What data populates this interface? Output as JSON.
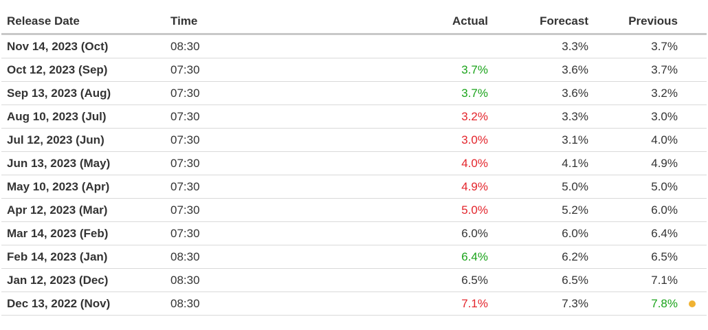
{
  "colors": {
    "better": "#1aa31a",
    "worse": "#e3242b",
    "neutral": "#333333",
    "revision_dot": "#f0b233"
  },
  "headers": {
    "release_date": "Release Date",
    "time": "Time",
    "actual": "Actual",
    "forecast": "Forecast",
    "previous": "Previous"
  },
  "rows": [
    {
      "date": "Nov 14, 2023 (Oct)",
      "time": "08:30",
      "actual": "",
      "actual_status": "neutral",
      "forecast": "3.3%",
      "previous": "3.7%",
      "previous_status": "neutral"
    },
    {
      "date": "Oct 12, 2023 (Sep)",
      "time": "07:30",
      "actual": "3.7%",
      "actual_status": "better",
      "forecast": "3.6%",
      "previous": "3.7%",
      "previous_status": "neutral"
    },
    {
      "date": "Sep 13, 2023 (Aug)",
      "time": "07:30",
      "actual": "3.7%",
      "actual_status": "better",
      "forecast": "3.6%",
      "previous": "3.2%",
      "previous_status": "neutral"
    },
    {
      "date": "Aug 10, 2023 (Jul)",
      "time": "07:30",
      "actual": "3.2%",
      "actual_status": "worse",
      "forecast": "3.3%",
      "previous": "3.0%",
      "previous_status": "neutral"
    },
    {
      "date": "Jul 12, 2023 (Jun)",
      "time": "07:30",
      "actual": "3.0%",
      "actual_status": "worse",
      "forecast": "3.1%",
      "previous": "4.0%",
      "previous_status": "neutral"
    },
    {
      "date": "Jun 13, 2023 (May)",
      "time": "07:30",
      "actual": "4.0%",
      "actual_status": "worse",
      "forecast": "4.1%",
      "previous": "4.9%",
      "previous_status": "neutral"
    },
    {
      "date": "May 10, 2023 (Apr)",
      "time": "07:30",
      "actual": "4.9%",
      "actual_status": "worse",
      "forecast": "5.0%",
      "previous": "5.0%",
      "previous_status": "neutral"
    },
    {
      "date": "Apr 12, 2023 (Mar)",
      "time": "07:30",
      "actual": "5.0%",
      "actual_status": "worse",
      "forecast": "5.2%",
      "previous": "6.0%",
      "previous_status": "neutral"
    },
    {
      "date": "Mar 14, 2023 (Feb)",
      "time": "07:30",
      "actual": "6.0%",
      "actual_status": "neutral",
      "forecast": "6.0%",
      "previous": "6.4%",
      "previous_status": "neutral"
    },
    {
      "date": "Feb 14, 2023 (Jan)",
      "time": "08:30",
      "actual": "6.4%",
      "actual_status": "better",
      "forecast": "6.2%",
      "previous": "6.5%",
      "previous_status": "neutral"
    },
    {
      "date": "Jan 12, 2023 (Dec)",
      "time": "08:30",
      "actual": "6.5%",
      "actual_status": "neutral",
      "forecast": "6.5%",
      "previous": "7.1%",
      "previous_status": "neutral"
    },
    {
      "date": "Dec 13, 2022 (Nov)",
      "time": "08:30",
      "actual": "7.1%",
      "actual_status": "worse",
      "forecast": "7.3%",
      "previous": "7.8%",
      "previous_status": "better",
      "previous_revised": true
    }
  ]
}
